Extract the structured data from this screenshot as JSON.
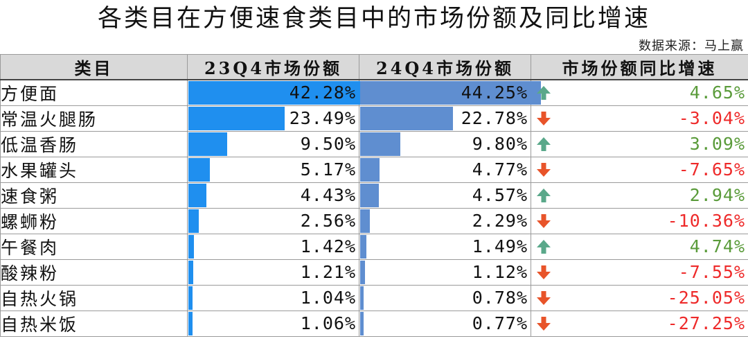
{
  "title": "各类目在方便速食类目中的市场份额及同比增速",
  "source": "数据来源：马上赢",
  "headers": [
    "类目",
    "23Q4市场份额",
    "24Q4市场份额",
    "市场份额同比增速"
  ],
  "colors": {
    "bar_23q4": "#1f8fef",
    "bar_24q4": "#5f8ed0",
    "up": "#5a9b3a",
    "down": "#ee2a2a",
    "header_bg": "#d9d9d9"
  },
  "chart_data": {
    "type": "table",
    "title": "各类目在方便速食类目中的市场份额及同比增速",
    "columns": [
      "类目",
      "23Q4市场份额",
      "24Q4市场份额",
      "市场份额同比增速"
    ],
    "rows": [
      {
        "category": "方便面",
        "share_23q4": "42.28%",
        "share_24q4": "44.25%",
        "yoy": "4.65%",
        "direction": "up"
      },
      {
        "category": "常温火腿肠",
        "share_23q4": "23.49%",
        "share_24q4": "22.78%",
        "yoy": "-3.04%",
        "direction": "down"
      },
      {
        "category": "低温香肠",
        "share_23q4": "9.50%",
        "share_24q4": "9.80%",
        "yoy": "3.09%",
        "direction": "up"
      },
      {
        "category": "水果罐头",
        "share_23q4": "5.17%",
        "share_24q4": "4.77%",
        "yoy": "-7.65%",
        "direction": "down"
      },
      {
        "category": "速食粥",
        "share_23q4": "4.43%",
        "share_24q4": "4.57%",
        "yoy": "2.94%",
        "direction": "up"
      },
      {
        "category": "螺蛳粉",
        "share_23q4": "2.56%",
        "share_24q4": "2.29%",
        "yoy": "-10.36%",
        "direction": "down"
      },
      {
        "category": "午餐肉",
        "share_23q4": "1.42%",
        "share_24q4": "1.49%",
        "yoy": "4.74%",
        "direction": "up"
      },
      {
        "category": "酸辣粉",
        "share_23q4": "1.21%",
        "share_24q4": "1.12%",
        "yoy": "-7.55%",
        "direction": "down"
      },
      {
        "category": "自热火锅",
        "share_23q4": "1.04%",
        "share_24q4": "0.78%",
        "yoy": "-25.05%",
        "direction": "down"
      },
      {
        "category": "自热米饭",
        "share_23q4": "1.06%",
        "share_24q4": "0.77%",
        "yoy": "-27.25%",
        "direction": "down"
      }
    ],
    "series": [
      {
        "name": "23Q4市场份额",
        "values": [
          42.28,
          23.49,
          9.5,
          5.17,
          4.43,
          2.56,
          1.42,
          1.21,
          1.04,
          1.06
        ]
      },
      {
        "name": "24Q4市场份额",
        "values": [
          44.25,
          22.78,
          9.8,
          4.77,
          4.57,
          2.29,
          1.49,
          1.12,
          0.78,
          0.77
        ]
      },
      {
        "name": "市场份额同比增速",
        "values": [
          4.65,
          -3.04,
          3.09,
          -7.65,
          2.94,
          -10.36,
          4.74,
          -7.55,
          -25.05,
          -27.25
        ]
      }
    ],
    "bar_scale_max": 100
  }
}
